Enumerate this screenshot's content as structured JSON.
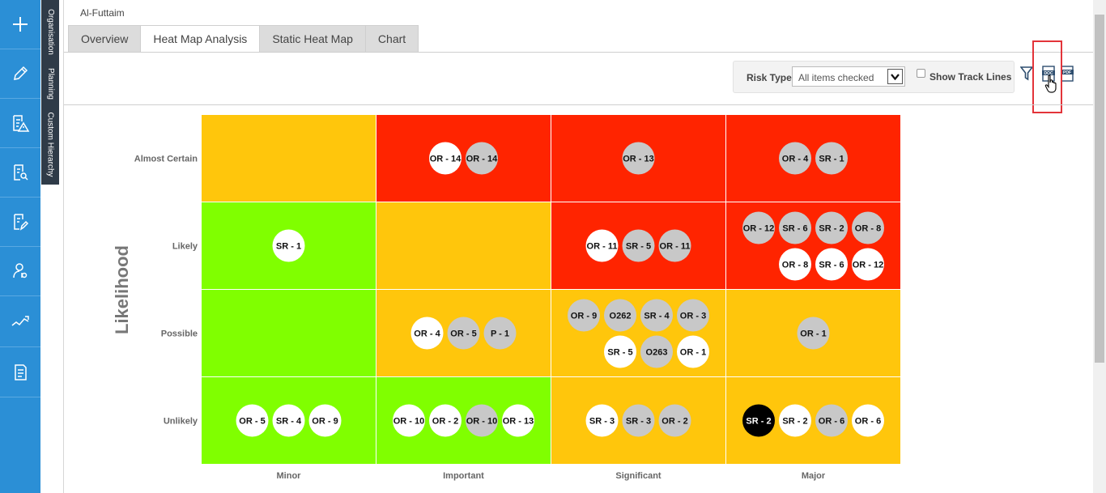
{
  "org": {
    "name": "Al-Futtaim"
  },
  "tabs": [
    "Overview",
    "Heat Map Analysis",
    "Static Heat Map",
    "Chart"
  ],
  "active_tab": 1,
  "side_tabs": [
    "Organisation",
    "Planning",
    "Custom Hierarchy"
  ],
  "rail_icons": [
    "plus-icon",
    "pencil-icon",
    "risk-report-icon",
    "search-document-icon",
    "document-edit-icon",
    "user-search-icon",
    "trend-icon",
    "document-icon"
  ],
  "toolbar": {
    "risk_type_label": "Risk Type",
    "risk_type_value": "All items checked",
    "track_lines_label": "Show Track Lines",
    "track_lines_checked": false,
    "icons": [
      "filter-icon",
      "export-doc-icon",
      "export-pdf-icon"
    ]
  },
  "colors": {
    "red": "#ff2400",
    "amber": "#ffc60c",
    "green": "#80ff00",
    "bubble_white": "#ffffff",
    "bubble_grey": "#c8c8c8",
    "bubble_black": "#000000"
  },
  "chart_data": {
    "type": "heatmap",
    "ylabel": "Likelihood",
    "xlabel": "",
    "y_categories": [
      "Almost Certain",
      "Likely",
      "Possible",
      "Unlikely"
    ],
    "x_categories": [
      "Minor",
      "Important",
      "Significant",
      "Major"
    ],
    "cells": [
      [
        {
          "color": "amber",
          "risks": []
        },
        {
          "color": "red",
          "risks": [
            {
              "id": "OR - 14",
              "fill": "white"
            },
            {
              "id": "OR - 14",
              "fill": "grey"
            }
          ]
        },
        {
          "color": "red",
          "risks": [
            {
              "id": "OR - 13",
              "fill": "grey"
            }
          ]
        },
        {
          "color": "red",
          "risks": [
            {
              "id": "OR - 4",
              "fill": "grey"
            },
            {
              "id": "SR - 1",
              "fill": "grey"
            }
          ]
        }
      ],
      [
        {
          "color": "green",
          "risks": [
            {
              "id": "SR - 1",
              "fill": "white"
            }
          ]
        },
        {
          "color": "amber",
          "risks": []
        },
        {
          "color": "red",
          "risks": [
            {
              "id": "OR - 11",
              "fill": "white"
            },
            {
              "id": "SR - 5",
              "fill": "grey"
            },
            {
              "id": "OR - 11",
              "fill": "grey"
            }
          ]
        },
        {
          "color": "red",
          "risks": [
            {
              "id": "OR - 12",
              "fill": "grey"
            },
            {
              "id": "SR - 6",
              "fill": "grey"
            },
            {
              "id": "SR - 2",
              "fill": "grey"
            },
            {
              "id": "OR - 8",
              "fill": "grey"
            },
            {
              "id": "OR - 8",
              "fill": "white"
            },
            {
              "id": "SR - 6",
              "fill": "white"
            },
            {
              "id": "OR - 12",
              "fill": "white"
            }
          ]
        }
      ],
      [
        {
          "color": "green",
          "risks": []
        },
        {
          "color": "amber",
          "risks": [
            {
              "id": "OR - 4",
              "fill": "white"
            },
            {
              "id": "OR - 5",
              "fill": "grey"
            },
            {
              "id": "P - 1",
              "fill": "grey"
            }
          ]
        },
        {
          "color": "amber",
          "risks": [
            {
              "id": "OR - 9",
              "fill": "grey"
            },
            {
              "id": "O262",
              "fill": "grey"
            },
            {
              "id": "SR - 4",
              "fill": "grey"
            },
            {
              "id": "OR - 3",
              "fill": "grey"
            },
            {
              "id": "SR - 5",
              "fill": "white"
            },
            {
              "id": "O263",
              "fill": "grey"
            },
            {
              "id": "OR - 1",
              "fill": "white"
            }
          ]
        },
        {
          "color": "amber",
          "risks": [
            {
              "id": "OR - 1",
              "fill": "grey"
            }
          ]
        }
      ],
      [
        {
          "color": "green",
          "risks": [
            {
              "id": "OR - 5",
              "fill": "white"
            },
            {
              "id": "SR - 4",
              "fill": "white"
            },
            {
              "id": "OR - 9",
              "fill": "white"
            }
          ]
        },
        {
          "color": "green",
          "risks": [
            {
              "id": "OR - 10",
              "fill": "white"
            },
            {
              "id": "OR - 2",
              "fill": "white"
            },
            {
              "id": "OR - 10",
              "fill": "grey"
            },
            {
              "id": "OR - 13",
              "fill": "white"
            }
          ]
        },
        {
          "color": "amber",
          "risks": [
            {
              "id": "SR - 3",
              "fill": "white"
            },
            {
              "id": "SR - 3",
              "fill": "grey"
            },
            {
              "id": "OR - 2",
              "fill": "grey"
            }
          ]
        },
        {
          "color": "amber",
          "risks": [
            {
              "id": "SR - 2",
              "fill": "black"
            },
            {
              "id": "SR - 2",
              "fill": "white"
            },
            {
              "id": "OR - 6",
              "fill": "grey"
            },
            {
              "id": "OR - 6",
              "fill": "white"
            }
          ]
        }
      ]
    ]
  }
}
